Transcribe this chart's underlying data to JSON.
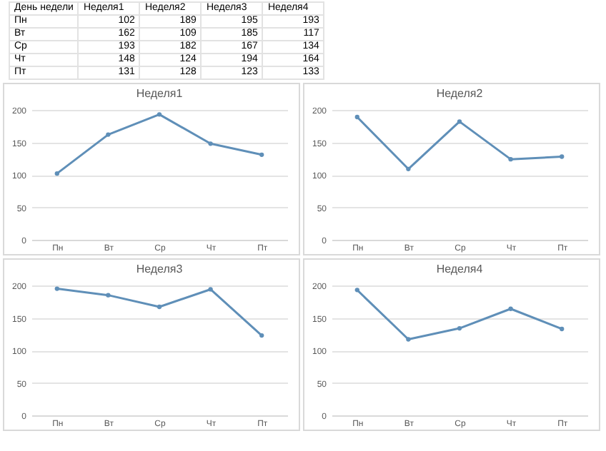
{
  "chart_data": [
    {
      "type": "other",
      "annotations": [
        "День недели",
        "Неделя1",
        "Неделя2",
        "Неделя3",
        "Неделя4",
        "Пн",
        "102",
        "189",
        "195",
        "193",
        "Вт",
        "162",
        "109",
        "185",
        "117",
        "Ср",
        "193",
        "182",
        "167",
        "134",
        "Чт",
        "148",
        "124",
        "194",
        "164",
        "Пт",
        "131",
        "128",
        "123",
        "133"
      ]
    },
    {
      "type": "line",
      "title": "Неделя1",
      "categories": [
        "Пн",
        "Вт",
        "Ср",
        "Чт",
        "Пт"
      ],
      "series": [
        {
          "color": "#5f8fb8",
          "values": [
            102,
            162,
            193,
            148,
            131
          ]
        }
      ],
      "ylim": [
        0,
        200
      ],
      "yticks": [
        0,
        50,
        100,
        150,
        200
      ],
      "grid": "y",
      "marker": "circle"
    },
    {
      "type": "line",
      "title": "Неделя2",
      "categories": [
        "Пн",
        "Вт",
        "Ср",
        "Чт",
        "Пт"
      ],
      "series": [
        {
          "color": "#5f8fb8",
          "values": [
            189,
            109,
            182,
            124,
            128
          ]
        }
      ],
      "ylim": [
        0,
        200
      ],
      "yticks": [
        0,
        50,
        100,
        150,
        200
      ],
      "grid": "y",
      "marker": "circle"
    },
    {
      "type": "line",
      "title": "Неделя3",
      "categories": [
        "Пн",
        "Вт",
        "Ср",
        "Чт",
        "Пт"
      ],
      "series": [
        {
          "color": "#5f8fb8",
          "values": [
            195,
            185,
            167,
            194,
            123
          ]
        }
      ],
      "ylim": [
        0,
        200
      ],
      "yticks": [
        0,
        50,
        100,
        150,
        200
      ],
      "grid": "y",
      "marker": "circle"
    },
    {
      "type": "line",
      "title": "Неделя4",
      "categories": [
        "Пн",
        "Вт",
        "Ср",
        "Чт",
        "Пт"
      ],
      "series": [
        {
          "color": "#5f8fb8",
          "values": [
            193,
            117,
            134,
            164,
            133
          ]
        }
      ],
      "ylim": [
        0,
        200
      ],
      "yticks": [
        0,
        50,
        100,
        150,
        200
      ],
      "grid": "y",
      "marker": "circle"
    }
  ]
}
